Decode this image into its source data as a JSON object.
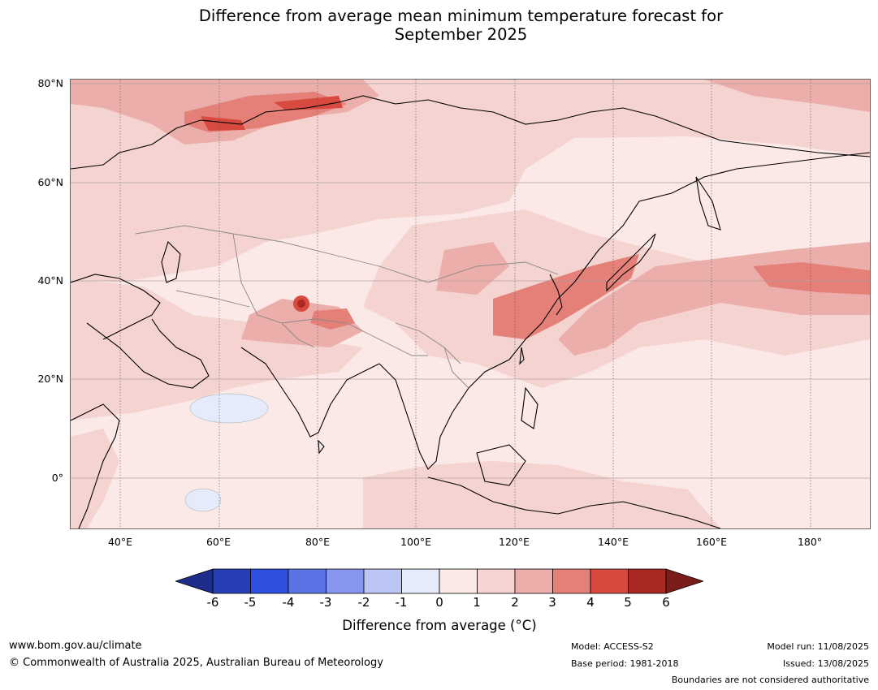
{
  "title_line1": "Difference from average mean minimum temperature forecast for",
  "title_line2": "September 2025",
  "map": {
    "y_ticks": [
      "80°N",
      "60°N",
      "40°N",
      "20°N",
      "0°"
    ],
    "x_ticks": [
      "40°E",
      "60°E",
      "80°E",
      "100°E",
      "120°E",
      "140°E",
      "160°E",
      "180°"
    ]
  },
  "colorbar": {
    "labels": [
      "-6",
      "-5",
      "-4",
      "-3",
      "-2",
      "-1",
      "0",
      "1",
      "2",
      "3",
      "4",
      "5",
      "6"
    ],
    "colors": [
      "#1f2d8a",
      "#273fb4",
      "#3050e0",
      "#5a74e6",
      "#8796ec",
      "#bcc6f4",
      "#e6ebfb",
      "#fbe9e7",
      "#f4d3d0",
      "#ecaeaa",
      "#e48078",
      "#d84a40",
      "#a82a22",
      "#7a1c18"
    ],
    "title": "Difference from average (°C)"
  },
  "footer": {
    "website": "www.bom.gov.au/climate",
    "copyright": "© Commonwealth of Australia 2025, Australian Bureau of Meteorology",
    "model": "Model: ACCESS-S2",
    "base_period": "Base period: 1981-2018",
    "model_run": "Model run: 11/08/2025",
    "issued": "Issued: 13/08/2025",
    "disclaimer": "Boundaries are not considered authoritative"
  }
}
